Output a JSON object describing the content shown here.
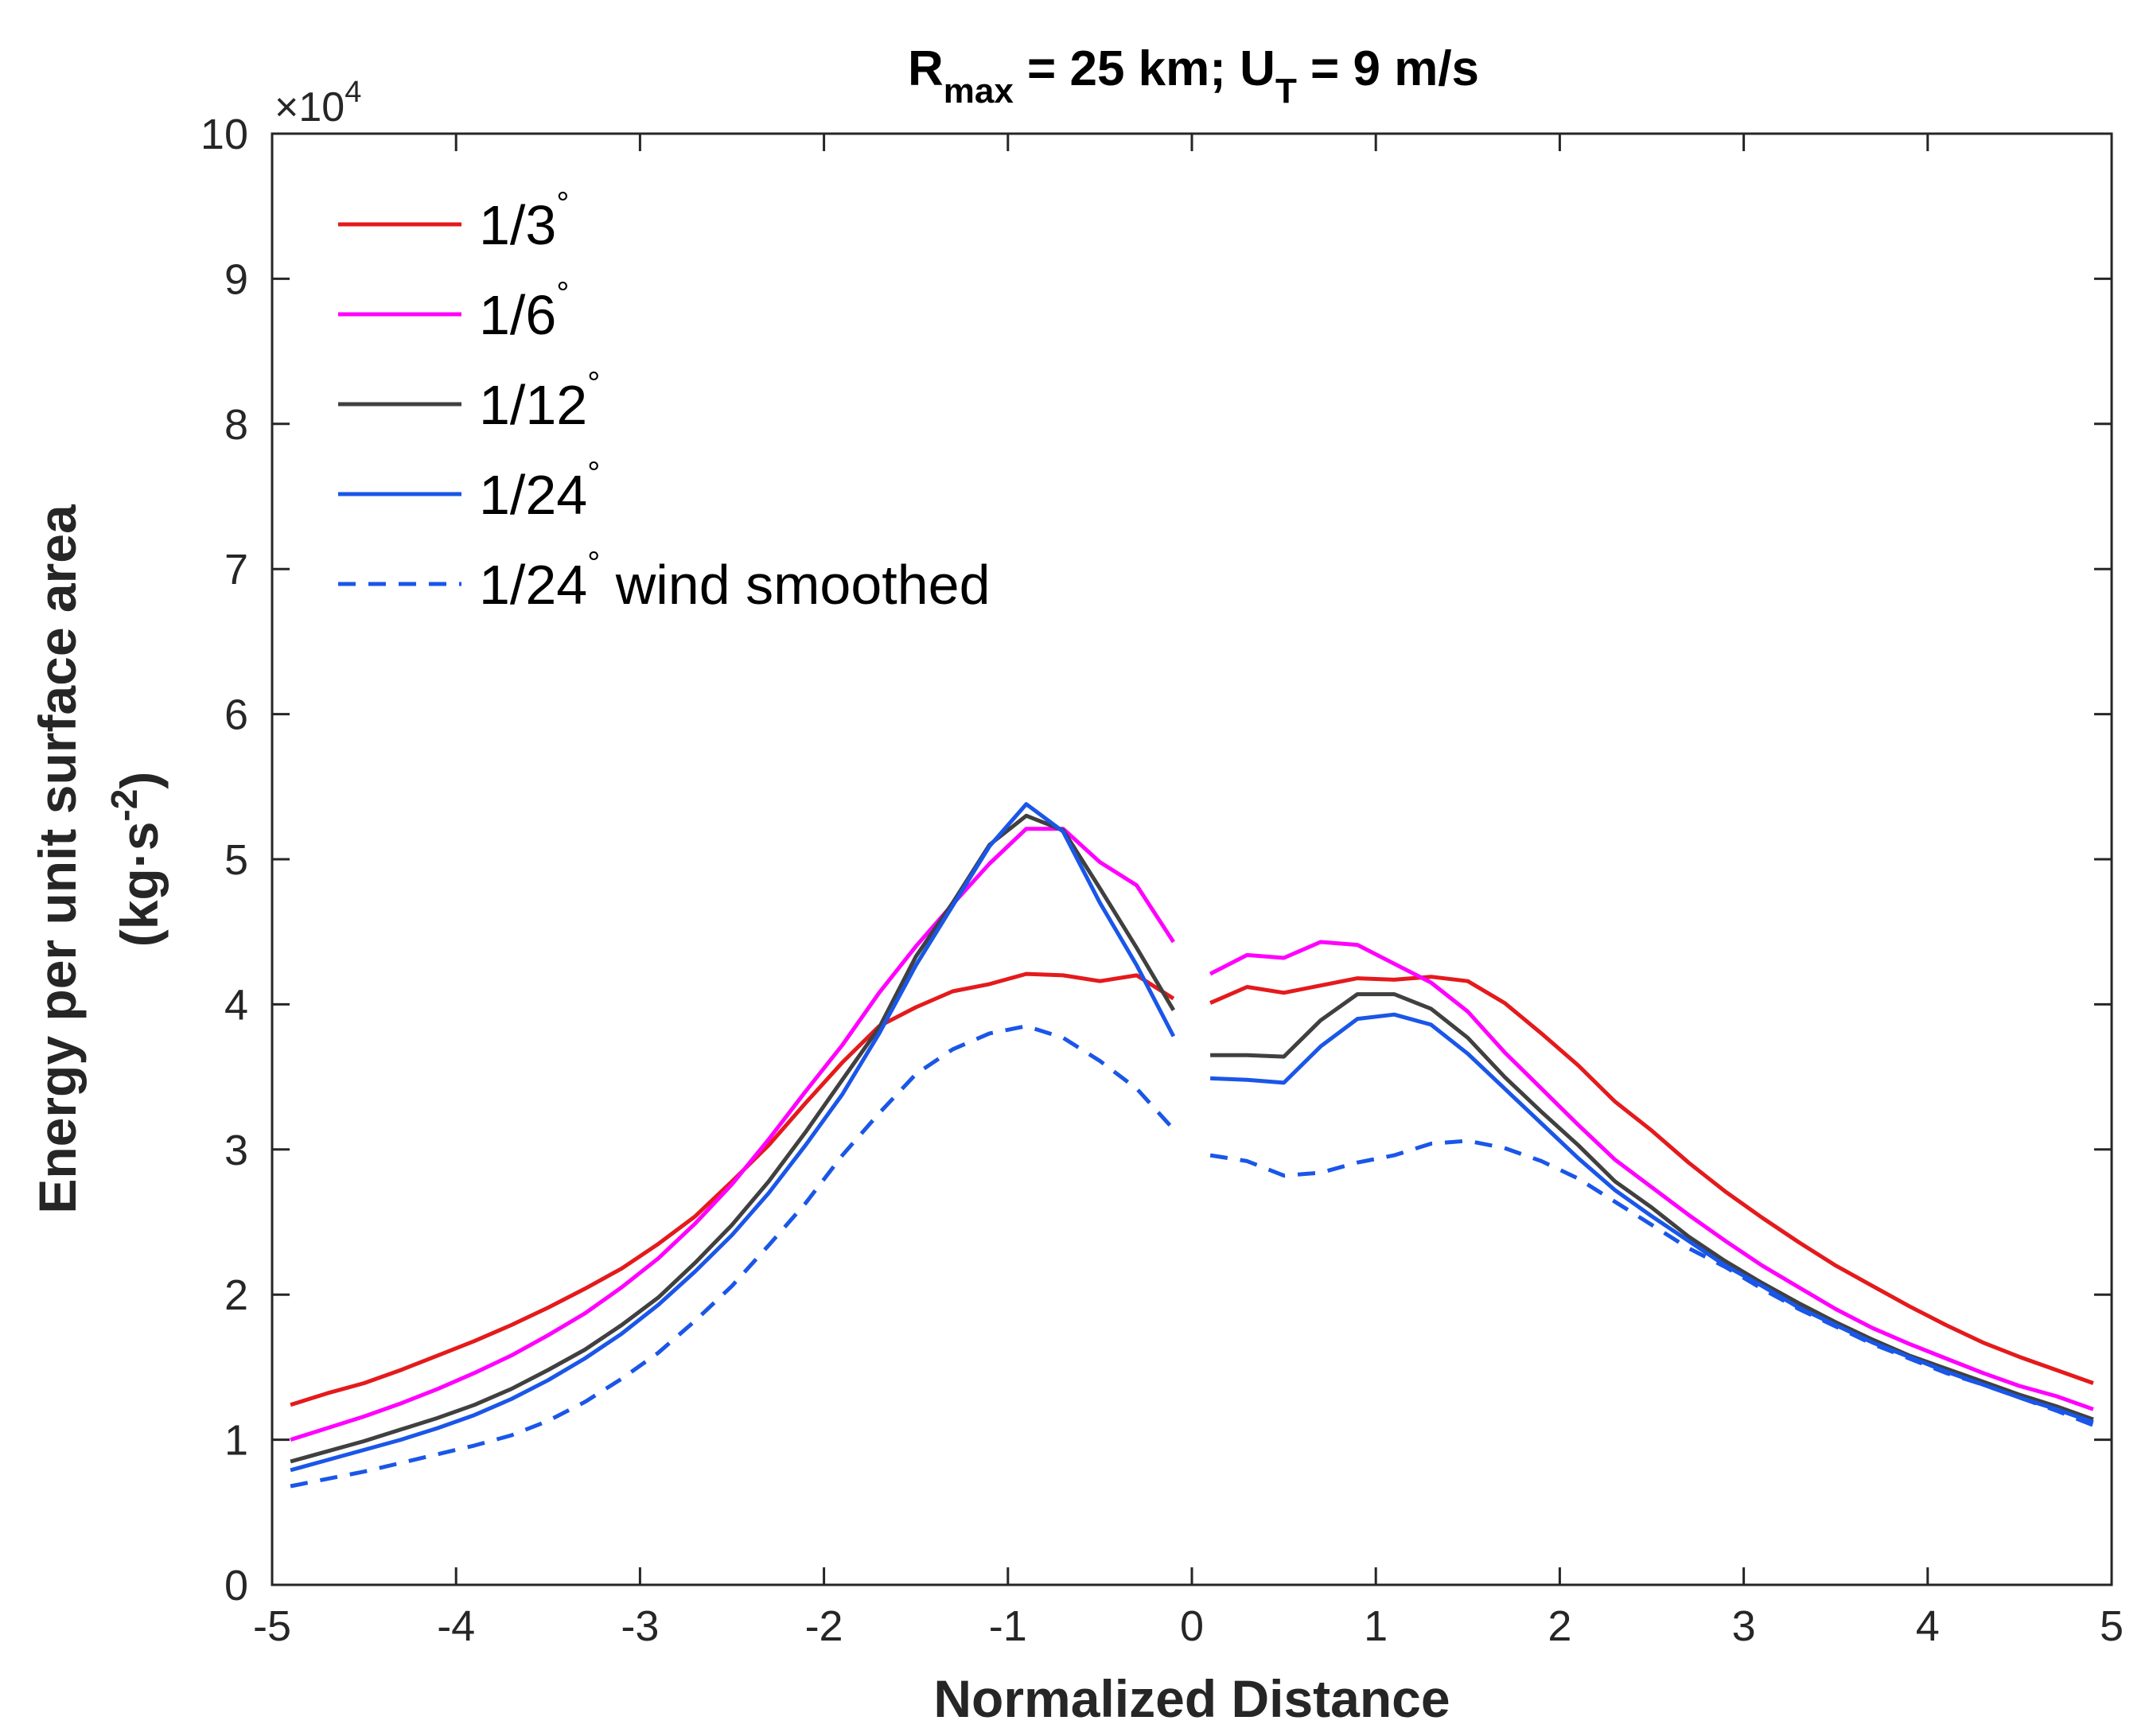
{
  "chart_data": {
    "type": "line",
    "title": {
      "main_r": "R",
      "sub_max": "max",
      "mid": " = 25 km; U",
      "sub_t": "T",
      "end": " = 9 m/s"
    },
    "xlabel": "Normalized Distance",
    "ylabel_line1": "Energy per unit surface area",
    "ylabel_line2_pre": "(kg·s",
    "ylabel_line2_sup": "-2",
    "ylabel_line2_post": ")",
    "exponent_prefix": "×10",
    "exponent_power": "4",
    "xlim": [
      -5,
      5
    ],
    "ylim": [
      0,
      100000
    ],
    "xticks": [
      "-5",
      "-4",
      "-3",
      "-2",
      "-1",
      "0",
      "1",
      "2",
      "3",
      "4",
      "5"
    ],
    "yticks": [
      "0",
      "1",
      "2",
      "3",
      "4",
      "5",
      "6",
      "7",
      "8",
      "9",
      "10"
    ],
    "legend_position": "top-left",
    "series": [
      {
        "name": "1/3",
        "degree": "°",
        "suffix": "",
        "color": "#e41a1c",
        "dashed": false,
        "left_x": [
          -4.9,
          -4.7,
          -4.5,
          -4.3,
          -4.1,
          -3.9,
          -3.7,
          -3.5,
          -3.3,
          -3.1,
          -2.9,
          -2.7,
          -2.5,
          -2.3,
          -2.1,
          -1.9,
          -1.7,
          -1.5,
          -1.3,
          -1.1,
          -0.9,
          -0.7,
          -0.5,
          -0.3,
          -0.1
        ],
        "left_y": [
          12400,
          13200,
          13900,
          14800,
          15800,
          16800,
          17900,
          19100,
          20400,
          21800,
          23500,
          25400,
          27800,
          30300,
          33200,
          36000,
          38500,
          39800,
          40900,
          41400,
          42100,
          42000,
          41600,
          42000,
          40400
        ],
        "right_x": [
          0.1,
          0.3,
          0.5,
          0.7,
          0.9,
          1.1,
          1.3,
          1.5,
          1.7,
          1.9,
          2.1,
          2.3,
          2.5,
          2.7,
          2.9,
          3.1,
          3.3,
          3.5,
          3.7,
          3.9,
          4.1,
          4.3,
          4.5,
          4.7,
          4.9
        ],
        "right_y": [
          40100,
          41200,
          40800,
          41300,
          41800,
          41700,
          41900,
          41600,
          40100,
          38000,
          35800,
          33300,
          31300,
          29100,
          27100,
          25300,
          23600,
          22000,
          20600,
          19200,
          17900,
          16700,
          15700,
          14800,
          13900
        ]
      },
      {
        "name": "1/6",
        "degree": "°",
        "suffix": "",
        "color": "#ff00ff",
        "dashed": false,
        "left_x": [
          -4.9,
          -4.7,
          -4.5,
          -4.3,
          -4.1,
          -3.9,
          -3.7,
          -3.5,
          -3.3,
          -3.1,
          -2.9,
          -2.7,
          -2.5,
          -2.3,
          -2.1,
          -1.9,
          -1.7,
          -1.5,
          -1.3,
          -1.1,
          -0.9,
          -0.7,
          -0.5,
          -0.3,
          -0.1
        ],
        "left_y": [
          10000,
          10800,
          11600,
          12500,
          13500,
          14600,
          15800,
          17200,
          18700,
          20500,
          22500,
          24900,
          27600,
          30700,
          34000,
          37200,
          40800,
          44000,
          46900,
          49700,
          52100,
          52100,
          49800,
          48200,
          44300
        ],
        "right_x": [
          0.1,
          0.3,
          0.5,
          0.7,
          0.9,
          1.1,
          1.3,
          1.5,
          1.7,
          1.9,
          2.1,
          2.3,
          2.5,
          2.7,
          2.9,
          3.1,
          3.3,
          3.5,
          3.7,
          3.9,
          4.1,
          4.3,
          4.5,
          4.7,
          4.9
        ],
        "right_y": [
          42100,
          43400,
          43200,
          44300,
          44100,
          42800,
          41500,
          39500,
          36700,
          34200,
          31700,
          29300,
          27400,
          25500,
          23700,
          22000,
          20500,
          19000,
          17700,
          16600,
          15600,
          14600,
          13700,
          13000,
          12100
        ]
      },
      {
        "name": "1/12",
        "degree": "°",
        "suffix": "",
        "color": "#404040",
        "dashed": false,
        "left_x": [
          -4.9,
          -4.7,
          -4.5,
          -4.3,
          -4.1,
          -3.9,
          -3.7,
          -3.5,
          -3.3,
          -3.1,
          -2.9,
          -2.7,
          -2.5,
          -2.3,
          -2.1,
          -1.9,
          -1.7,
          -1.5,
          -1.3,
          -1.1,
          -0.9,
          -0.7,
          -0.5,
          -0.3,
          -0.1
        ],
        "left_y": [
          8500,
          9200,
          9900,
          10700,
          11500,
          12400,
          13500,
          14800,
          16200,
          17900,
          19800,
          22200,
          24800,
          27800,
          31200,
          34800,
          38400,
          43300,
          47000,
          51000,
          53000,
          52000,
          48000,
          43900,
          39600
        ],
        "right_x": [
          0.1,
          0.3,
          0.5,
          0.7,
          0.9,
          1.1,
          1.3,
          1.5,
          1.7,
          1.9,
          2.1,
          2.3,
          2.5,
          2.7,
          2.9,
          3.1,
          3.3,
          3.5,
          3.7,
          3.9,
          4.1,
          4.3,
          4.5,
          4.7,
          4.9
        ],
        "right_y": [
          36500,
          36500,
          36400,
          38900,
          40700,
          40700,
          39700,
          37700,
          35000,
          32600,
          30300,
          27800,
          26000,
          24000,
          22300,
          20800,
          19400,
          18100,
          16900,
          15800,
          14900,
          14000,
          13100,
          12300,
          11400
        ]
      },
      {
        "name": "1/24",
        "degree": "°",
        "suffix": "",
        "color": "#1a56e8",
        "dashed": false,
        "left_x": [
          -4.9,
          -4.7,
          -4.5,
          -4.3,
          -4.1,
          -3.9,
          -3.7,
          -3.5,
          -3.3,
          -3.1,
          -2.9,
          -2.7,
          -2.5,
          -2.3,
          -2.1,
          -1.9,
          -1.7,
          -1.5,
          -1.3,
          -1.1,
          -0.9,
          -0.7,
          -0.5,
          -0.3,
          -0.1
        ],
        "left_y": [
          7900,
          8600,
          9300,
          10000,
          10800,
          11700,
          12800,
          14100,
          15600,
          17300,
          19300,
          21600,
          24100,
          27000,
          30300,
          33800,
          38000,
          42700,
          46800,
          50900,
          53800,
          51900,
          47000,
          42700,
          37800
        ],
        "right_x": [
          0.1,
          0.3,
          0.5,
          0.7,
          0.9,
          1.1,
          1.3,
          1.5,
          1.7,
          1.9,
          2.1,
          2.3,
          2.5,
          2.7,
          2.9,
          3.1,
          3.3,
          3.5,
          3.7,
          3.9,
          4.1,
          4.3,
          4.5,
          4.7,
          4.9
        ],
        "right_y": [
          34900,
          34800,
          34600,
          37100,
          39000,
          39300,
          38600,
          36600,
          34200,
          31800,
          29400,
          27200,
          25400,
          23700,
          22000,
          20600,
          19100,
          17900,
          16700,
          15700,
          14700,
          13800,
          12900,
          12100,
          11200
        ]
      },
      {
        "name": "1/24",
        "degree": "°",
        "suffix": " wind smoothed",
        "color": "#1a56e8",
        "dashed": true,
        "left_x": [
          -4.9,
          -4.7,
          -4.5,
          -4.3,
          -4.1,
          -3.9,
          -3.7,
          -3.5,
          -3.3,
          -3.1,
          -2.9,
          -2.7,
          -2.5,
          -2.3,
          -2.1,
          -1.9,
          -1.7,
          -1.5,
          -1.3,
          -1.1,
          -0.9,
          -0.7,
          -0.5,
          -0.3,
          -0.1
        ],
        "left_y": [
          6800,
          7300,
          7800,
          8400,
          9000,
          9600,
          10300,
          11300,
          12600,
          14200,
          16000,
          18200,
          20600,
          23400,
          26300,
          29600,
          32500,
          35200,
          36900,
          38000,
          38500,
          37700,
          36100,
          34200,
          31400
        ],
        "right_x": [
          0.1,
          0.3,
          0.5,
          0.7,
          0.9,
          1.1,
          1.3,
          1.5,
          1.7,
          1.9,
          2.1,
          2.3,
          2.5,
          2.7,
          2.9,
          3.1,
          3.3,
          3.5,
          3.7,
          3.9,
          4.1,
          4.3,
          4.5,
          4.7,
          4.9
        ],
        "right_y": [
          29600,
          29200,
          28200,
          28400,
          29100,
          29600,
          30400,
          30600,
          30100,
          29200,
          28000,
          26400,
          24800,
          23200,
          21900,
          20400,
          19000,
          17800,
          16600,
          15600,
          14600,
          13800,
          12900,
          12000,
          11000
        ]
      }
    ]
  }
}
